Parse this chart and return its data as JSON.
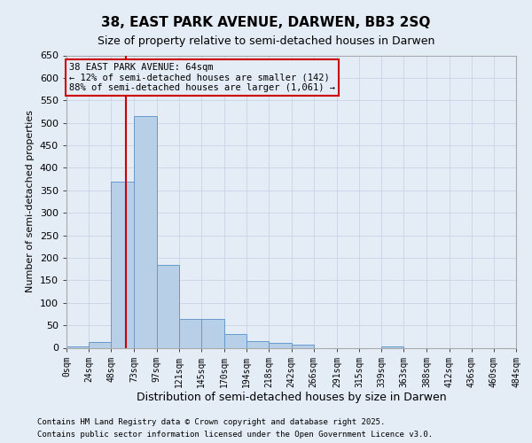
{
  "title": "38, EAST PARK AVENUE, DARWEN, BB3 2SQ",
  "subtitle": "Size of property relative to semi-detached houses in Darwen",
  "xlabel": "Distribution of semi-detached houses by size in Darwen",
  "ylabel": "Number of semi-detached properties",
  "footnote1": "Contains HM Land Registry data © Crown copyright and database right 2025.",
  "footnote2": "Contains public sector information licensed under the Open Government Licence v3.0.",
  "annotation_title": "38 EAST PARK AVENUE: 64sqm",
  "annotation_line1": "← 12% of semi-detached houses are smaller (142)",
  "annotation_line2": "88% of semi-detached houses are larger (1,061) →",
  "property_size": 64,
  "bins": [
    0,
    24,
    48,
    73,
    97,
    121,
    145,
    170,
    194,
    218,
    242,
    266,
    291,
    315,
    339,
    363,
    388,
    412,
    436,
    460,
    484
  ],
  "bin_labels": [
    "0sqm",
    "24sqm",
    "48sqm",
    "73sqm",
    "97sqm",
    "121sqm",
    "145sqm",
    "170sqm",
    "194sqm",
    "218sqm",
    "242sqm",
    "266sqm",
    "291sqm",
    "315sqm",
    "339sqm",
    "363sqm",
    "388sqm",
    "412sqm",
    "436sqm",
    "460sqm",
    "484sqm"
  ],
  "counts": [
    3,
    12,
    370,
    515,
    185,
    65,
    65,
    30,
    15,
    10,
    6,
    0,
    0,
    0,
    3,
    0,
    0,
    0,
    0,
    0
  ],
  "bar_color": "#b8cfe8",
  "bar_edge_color": "#6699cc",
  "vline_color": "#cc0000",
  "annotation_box_edge_color": "#cc0000",
  "grid_color": "#c8d4e8",
  "background_color": "#e4ecf6",
  "ylim": [
    0,
    650
  ],
  "yticks": [
    0,
    50,
    100,
    150,
    200,
    250,
    300,
    350,
    400,
    450,
    500,
    550,
    600,
    650
  ],
  "title_fontsize": 11,
  "subtitle_fontsize": 9
}
